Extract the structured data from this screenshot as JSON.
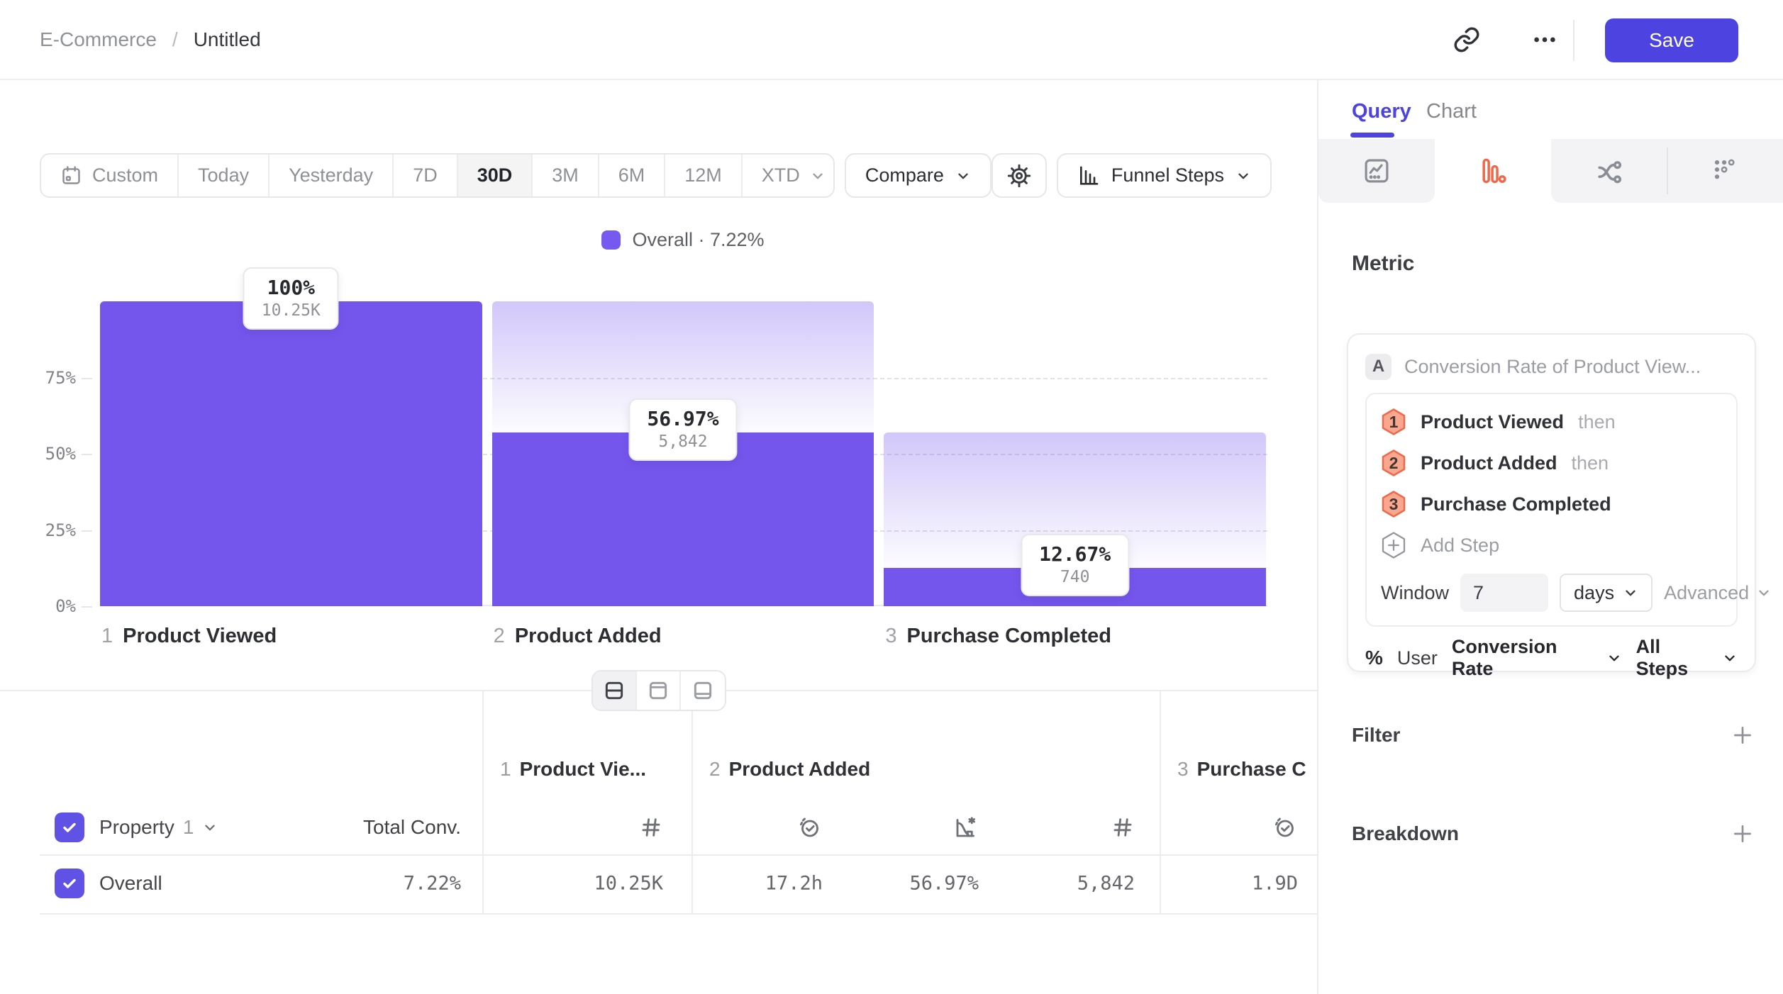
{
  "colors": {
    "accent": "#4c43e0",
    "bar": "#7456ec",
    "bar_ghost": "#d9cef8",
    "orange": "#ee6a4b",
    "hex_fill": "#f9a78f"
  },
  "header": {
    "breadcrumb_parent": "E-Commerce",
    "breadcrumb_sep": "/",
    "breadcrumb_current": "Untitled",
    "save_label": "Save",
    "icons": [
      "link-icon",
      "ellipsis-icon"
    ]
  },
  "toolbar": {
    "ranges": [
      {
        "label": "Custom",
        "icon": "calendar-icon"
      },
      {
        "label": "Today"
      },
      {
        "label": "Yesterday"
      },
      {
        "label": "7D"
      },
      {
        "label": "30D",
        "active": true
      },
      {
        "label": "3M"
      },
      {
        "label": "6M"
      },
      {
        "label": "12M"
      },
      {
        "label": "XTD",
        "chevron": true
      }
    ],
    "compare_label": "Compare",
    "settings_icon": "gear-icon",
    "chart_type": {
      "label": "Funnel Steps",
      "icon": "bar-chart-icon"
    }
  },
  "chart_data": {
    "type": "bar",
    "subtype": "funnel-steps",
    "legend_label": "Overall · 7.22%",
    "overall_conversion": "7.22%",
    "ylim": [
      0,
      100
    ],
    "yticks": [
      "75%",
      "50%",
      "25%",
      "0%"
    ],
    "grid": "dashed-horizontal",
    "categories": [
      "Product Viewed",
      "Product Added",
      "Purchase Completed"
    ],
    "steps": [
      {
        "num": "1",
        "name": "Product Viewed",
        "pct": 100,
        "pct_label": "100%",
        "count": 10250,
        "count_label": "10.25K"
      },
      {
        "num": "2",
        "name": "Product Added",
        "pct": 56.97,
        "pct_label": "56.97%",
        "count": 5842,
        "count_label": "5,842"
      },
      {
        "num": "3",
        "name": "Purchase Completed",
        "pct": 12.67,
        "pct_label": "12.67%",
        "count": 740,
        "count_label": "740"
      }
    ]
  },
  "view_toggle": {
    "options": [
      "split-view",
      "top-panel-view",
      "bottom-panel-view"
    ],
    "active": "split-view"
  },
  "table": {
    "property": {
      "label": "Property",
      "index": "1"
    },
    "total_conv_header": "Total Conv.",
    "groups": [
      {
        "num": "1",
        "label": "Product Vie...",
        "metric_icons": [
          "hash-icon"
        ]
      },
      {
        "num": "2",
        "label": "Product Added",
        "metric_icons": [
          "clock-check-icon",
          "rate-chart-icon",
          "hash-icon"
        ]
      },
      {
        "num": "3",
        "label": "Purchase C",
        "metric_icons": [
          "clock-check-icon"
        ]
      }
    ],
    "row": {
      "label": "Overall",
      "total_conv": "7.22%",
      "values": {
        "c1": "10.25K",
        "c2": "17.2h",
        "c3": "56.97%",
        "c4": "5,842",
        "c5": "1.9D"
      }
    }
  },
  "sidebar": {
    "tabs": {
      "query": "Query",
      "chart": "Chart"
    },
    "icon_tabs": [
      "insights-icon",
      "funnel-icon",
      "flows-icon",
      "retention-icon"
    ],
    "active_icon_tab": "funnel-icon",
    "metric_heading": "Metric",
    "metric": {
      "series_letter": "A",
      "title": "Conversion Rate of Product View...",
      "steps": [
        {
          "num": "1",
          "name": "Product Viewed",
          "suffix": "then"
        },
        {
          "num": "2",
          "name": "Product Added",
          "suffix": "then"
        },
        {
          "num": "3",
          "name": "Purchase Completed",
          "suffix": ""
        }
      ],
      "add_step_label": "Add Step",
      "window": {
        "label": "Window",
        "value": "7",
        "unit": "days",
        "advanced_label": "Advanced"
      },
      "footer": {
        "pct": "%",
        "entity": "User",
        "measure": "Conversion Rate",
        "scope": "All Steps"
      }
    },
    "filter": {
      "label": "Filter",
      "add": "+"
    },
    "breakdown": {
      "label": "Breakdown",
      "add": "+"
    }
  }
}
